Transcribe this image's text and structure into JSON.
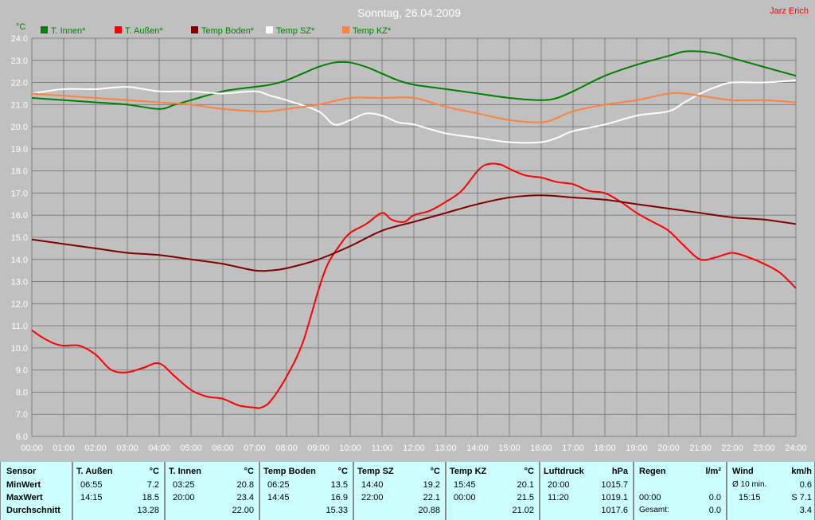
{
  "title": "Sonntag, 26.04.2009",
  "author": "Jarz Erich",
  "y_unit": "°C",
  "colors": {
    "t_innen": "#008000",
    "t_aussen": "#ff0000",
    "temp_boden": "#800000",
    "temp_sz": "#ffffff",
    "temp_kz": "#ff8040",
    "grid": "#808080",
    "background": "#c0c0c0",
    "table": "#ccffff"
  },
  "chart_data": {
    "type": "line",
    "title": "Sonntag, 26.04.2009",
    "ylabel": "°C",
    "ylim": [
      6.0,
      24.0
    ],
    "yticks": [
      "6.0",
      "7.0",
      "8.0",
      "9.0",
      "10.0",
      "11.0",
      "12.0",
      "13.0",
      "14.0",
      "15.0",
      "16.0",
      "17.0",
      "18.0",
      "19.0",
      "20.0",
      "21.0",
      "22.0",
      "23.0",
      "24.0"
    ],
    "xlim": [
      0,
      24
    ],
    "xticks": [
      "00:00",
      "01:00",
      "02:00",
      "03:00",
      "04:00",
      "05:00",
      "06:00",
      "07:00",
      "08:00",
      "09:00",
      "10:00",
      "11:00",
      "12:00",
      "13:00",
      "14:00",
      "15:00",
      "16:00",
      "17:00",
      "18:00",
      "19:00",
      "20:00",
      "21:00",
      "22:00",
      "23:00",
      "24:00"
    ],
    "grid": true,
    "legend_position": "top",
    "series": [
      {
        "name": "T. Innen*",
        "key": "t_innen",
        "x": [
          0,
          1,
          2,
          3,
          4,
          4.5,
          5,
          6,
          7,
          7.5,
          8,
          8.5,
          9,
          9.5,
          10,
          10.5,
          11,
          11.5,
          12,
          13,
          14,
          15,
          16,
          16.5,
          17,
          18,
          19,
          20,
          20.5,
          21,
          21.5,
          22,
          23,
          24
        ],
        "y": [
          21.3,
          21.2,
          21.1,
          21.0,
          20.8,
          21.0,
          21.2,
          21.6,
          21.8,
          21.9,
          22.1,
          22.4,
          22.7,
          22.9,
          22.9,
          22.7,
          22.4,
          22.1,
          21.9,
          21.7,
          21.5,
          21.3,
          21.2,
          21.3,
          21.6,
          22.3,
          22.8,
          23.2,
          23.4,
          23.4,
          23.3,
          23.1,
          22.7,
          22.3
        ]
      },
      {
        "name": "T. Außen*",
        "key": "t_aussen",
        "x": [
          0,
          0.3,
          0.7,
          1,
          1.5,
          2,
          2.5,
          3,
          3.5,
          4,
          4.5,
          5,
          5.5,
          6,
          6.5,
          7,
          7.2,
          7.5,
          8,
          8.5,
          9,
          9.3,
          9.7,
          10,
          10.5,
          11,
          11.3,
          11.7,
          12,
          12.5,
          13,
          13.5,
          14,
          14.3,
          14.7,
          15,
          15.5,
          16,
          16.5,
          17,
          17.5,
          18,
          18.5,
          19,
          19.5,
          20,
          20.5,
          21,
          21.5,
          22,
          22.5,
          23,
          23.5,
          24
        ],
        "y": [
          10.8,
          10.5,
          10.2,
          10.1,
          10.1,
          9.7,
          9.0,
          8.9,
          9.1,
          9.3,
          8.7,
          8.1,
          7.8,
          7.7,
          7.4,
          7.3,
          7.3,
          7.6,
          8.7,
          10.2,
          12.6,
          13.8,
          14.7,
          15.2,
          15.6,
          16.1,
          15.8,
          15.7,
          16.0,
          16.2,
          16.6,
          17.1,
          18.0,
          18.3,
          18.3,
          18.1,
          17.8,
          17.7,
          17.5,
          17.4,
          17.1,
          17.0,
          16.6,
          16.1,
          15.7,
          15.3,
          14.6,
          14.0,
          14.1,
          14.3,
          14.1,
          13.8,
          13.4,
          12.7
        ]
      },
      {
        "name": "Temp Boden*",
        "key": "temp_boden",
        "x": [
          0,
          1,
          2,
          3,
          4,
          5,
          6,
          7,
          7.5,
          8,
          9,
          10,
          11,
          12,
          13,
          14,
          15,
          16,
          17,
          18,
          19,
          20,
          21,
          22,
          23,
          24
        ],
        "y": [
          14.9,
          14.7,
          14.5,
          14.3,
          14.2,
          14.0,
          13.8,
          13.5,
          13.5,
          13.6,
          14.0,
          14.6,
          15.3,
          15.7,
          16.1,
          16.5,
          16.8,
          16.9,
          16.8,
          16.7,
          16.5,
          16.3,
          16.1,
          15.9,
          15.8,
          15.6
        ]
      },
      {
        "name": "Temp SZ*",
        "key": "temp_sz",
        "x": [
          0,
          1,
          2,
          3,
          4,
          5,
          6,
          7,
          7.5,
          8,
          9,
          9.5,
          10,
          10.5,
          11,
          11.5,
          12,
          13,
          14,
          15,
          16,
          16.5,
          17,
          18,
          19,
          20,
          20.5,
          21,
          21.5,
          22,
          23,
          24
        ],
        "y": [
          21.5,
          21.7,
          21.7,
          21.8,
          21.6,
          21.6,
          21.5,
          21.6,
          21.4,
          21.2,
          20.7,
          20.1,
          20.3,
          20.6,
          20.5,
          20.2,
          20.1,
          19.7,
          19.5,
          19.3,
          19.3,
          19.5,
          19.8,
          20.1,
          20.5,
          20.7,
          21.1,
          21.5,
          21.8,
          22.0,
          22.0,
          22.1
        ]
      },
      {
        "name": "Temp KZ*",
        "key": "temp_kz",
        "x": [
          0,
          1,
          2,
          3,
          4,
          5,
          6,
          7,
          7.5,
          8,
          9,
          10,
          11,
          12,
          13,
          14,
          15,
          16,
          16.5,
          17,
          18,
          19,
          20,
          20.5,
          21,
          22,
          23,
          24
        ],
        "y": [
          21.5,
          21.4,
          21.3,
          21.2,
          21.1,
          21.0,
          20.8,
          20.7,
          20.7,
          20.8,
          21.0,
          21.3,
          21.3,
          21.3,
          20.9,
          20.6,
          20.3,
          20.2,
          20.4,
          20.7,
          21.0,
          21.2,
          21.5,
          21.5,
          21.4,
          21.2,
          21.2,
          21.1
        ]
      }
    ]
  },
  "stats": {
    "sensor_col": {
      "title": "Sensor",
      "rows": [
        "MinWert",
        "MaxWert",
        "Durchschnitt"
      ]
    },
    "columns": [
      {
        "title": "T. Außen",
        "unit": "°C",
        "min_time": "06:55",
        "min_val": "7.2",
        "max_time": "14:15",
        "max_val": "18.5",
        "avg": "13.28"
      },
      {
        "title": "T. Innen",
        "unit": "°C",
        "min_time": "03:25",
        "min_val": "20.8",
        "max_time": "20:00",
        "max_val": "23.4",
        "avg": "22.00"
      },
      {
        "title": "Temp Boden",
        "unit": "°C",
        "min_time": "06:25",
        "min_val": "13.5",
        "max_time": "14:45",
        "max_val": "16.9",
        "avg": "15.33"
      },
      {
        "title": "Temp SZ",
        "unit": "°C",
        "min_time": "14:40",
        "min_val": "19.2",
        "max_time": "22:00",
        "max_val": "22.1",
        "avg": "20.88"
      },
      {
        "title": "Temp KZ",
        "unit": "°C",
        "min_time": "15:45",
        "min_val": "20.1",
        "max_time": "00:00",
        "max_val": "21.5",
        "avg": "21.02"
      },
      {
        "title": "Luftdruck",
        "unit": "hPa",
        "min_time": "20:00",
        "min_val": "1015.7",
        "max_time": "11:20",
        "max_val": "1019.1",
        "avg": "1017.6"
      }
    ],
    "regen": {
      "title": "Regen",
      "unit": "l/m²",
      "min_time": "",
      "min_val": "",
      "max_time": "00:00",
      "max_val": "0.0",
      "avg_label": "Gesamt:",
      "avg": "0.0"
    },
    "wind": {
      "title": "Wind",
      "unit": "km/h",
      "min_time": "Ø 10 min.",
      "min_val": "0.6",
      "max_time": "15:15",
      "max_val": "S 7.1",
      "avg": "3.4"
    }
  }
}
